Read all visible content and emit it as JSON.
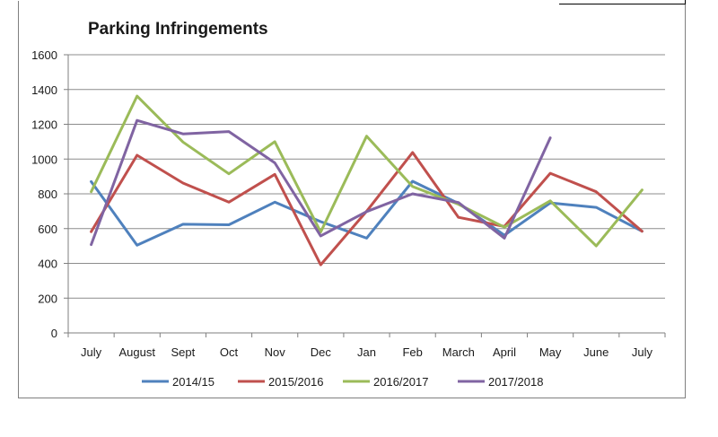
{
  "chart_data": {
    "type": "line",
    "title": "Parking Infringements",
    "xlabel": "",
    "ylabel": "",
    "categories": [
      "July",
      "August",
      "Sept",
      "Oct",
      "Nov",
      "Dec",
      "Jan",
      "Feb",
      "March",
      "April",
      "May",
      "June",
      "July"
    ],
    "ylim": [
      0,
      1600
    ],
    "yticks": [
      0,
      200,
      400,
      600,
      800,
      1000,
      1200,
      1400,
      1600
    ],
    "grid": true,
    "legend": "bottom",
    "series": [
      {
        "name": "2014/15",
        "color": "#4f81bd",
        "values": [
          870,
          505,
          625,
          622,
          752,
          640,
          545,
          872,
          745,
          562,
          748,
          722,
          585
        ]
      },
      {
        "name": "2015/2016",
        "color": "#c0504d",
        "values": [
          582,
          1022,
          862,
          752,
          912,
          392,
          700,
          1038,
          665,
          612,
          918,
          812,
          585
        ]
      },
      {
        "name": "2016/2017",
        "color": "#9bbb59",
        "values": [
          812,
          1362,
          1098,
          915,
          1100,
          580,
          1132,
          842,
          740,
          608,
          760,
          500,
          822
        ]
      },
      {
        "name": "2017/2018",
        "color": "#8064a2",
        "values": [
          508,
          1222,
          1145,
          1158,
          978,
          558,
          698,
          800,
          750,
          545,
          1122,
          null,
          null
        ]
      }
    ]
  }
}
